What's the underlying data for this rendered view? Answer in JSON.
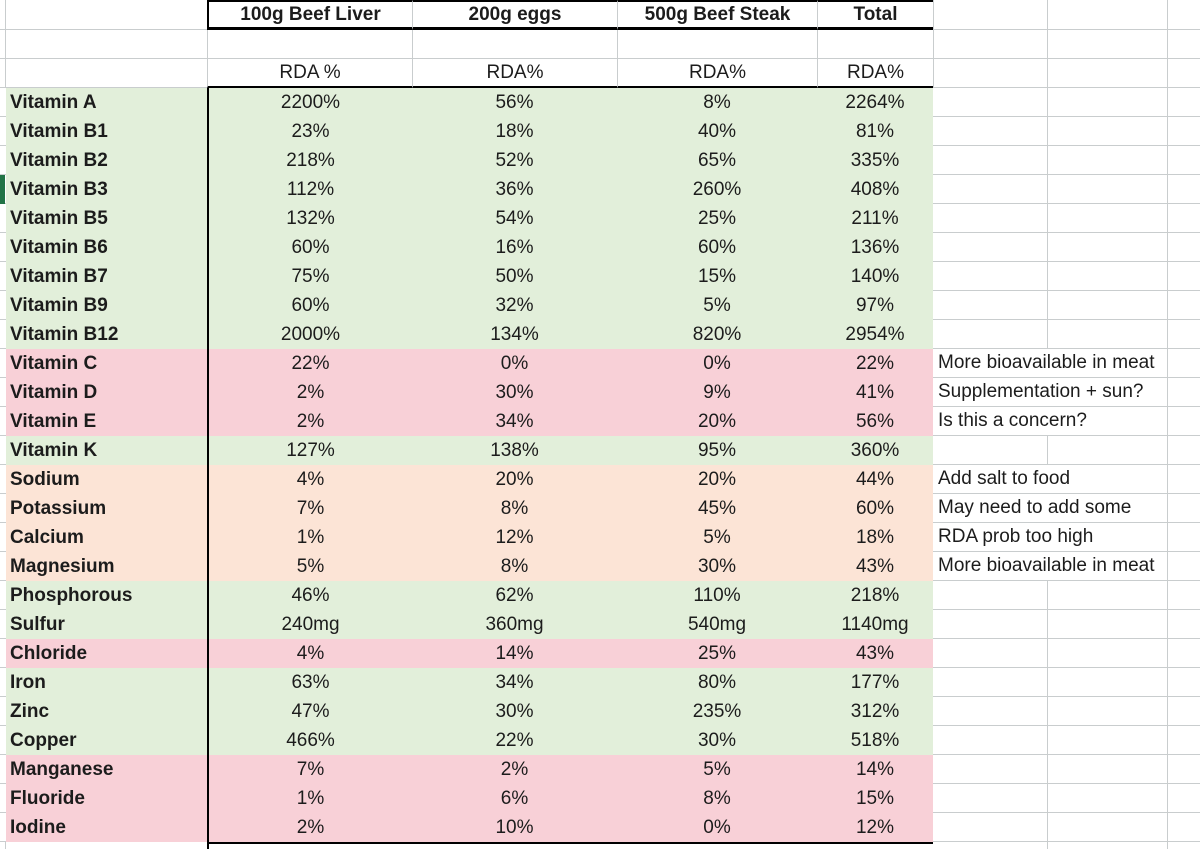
{
  "table": {
    "headers": {
      "col1": "100g Beef Liver",
      "col2": "200g eggs",
      "col3": "500g Beef Steak",
      "col4": "Total"
    },
    "subheaders": [
      "RDA %",
      "RDA%",
      "RDA%",
      "RDA%"
    ],
    "rows": [
      {
        "label": "Vitamin A",
        "fill": "green",
        "values": [
          "2200%",
          "56%",
          "8%",
          "2264%"
        ],
        "note": ""
      },
      {
        "label": "Vitamin B1",
        "fill": "green",
        "values": [
          "23%",
          "18%",
          "40%",
          "81%"
        ],
        "note": ""
      },
      {
        "label": "Vitamin B2",
        "fill": "green",
        "values": [
          "218%",
          "52%",
          "65%",
          "335%"
        ],
        "note": ""
      },
      {
        "label": "Vitamin B3",
        "fill": "green",
        "values": [
          "112%",
          "36%",
          "260%",
          "408%"
        ],
        "note": ""
      },
      {
        "label": "Vitamin B5",
        "fill": "green",
        "values": [
          "132%",
          "54%",
          "25%",
          "211%"
        ],
        "note": ""
      },
      {
        "label": "Vitamin B6",
        "fill": "green",
        "values": [
          "60%",
          "16%",
          "60%",
          "136%"
        ],
        "note": ""
      },
      {
        "label": "Vitamin B7",
        "fill": "green",
        "values": [
          "75%",
          "50%",
          "15%",
          "140%"
        ],
        "note": ""
      },
      {
        "label": "Vitamin B9",
        "fill": "green",
        "values": [
          "60%",
          "32%",
          "5%",
          "97%"
        ],
        "note": ""
      },
      {
        "label": "Vitamin B12",
        "fill": "green",
        "values": [
          "2000%",
          "134%",
          "820%",
          "2954%"
        ],
        "note": ""
      },
      {
        "label": "Vitamin C",
        "fill": "pink",
        "values": [
          "22%",
          "0%",
          "0%",
          "22%"
        ],
        "note": "More bioavailable in meat"
      },
      {
        "label": "Vitamin D",
        "fill": "pink",
        "values": [
          "2%",
          "30%",
          "9%",
          "41%"
        ],
        "note": "Supplementation + sun?"
      },
      {
        "label": "Vitamin E",
        "fill": "pink",
        "values": [
          "2%",
          "34%",
          "20%",
          "56%"
        ],
        "note": "Is this a concern?"
      },
      {
        "label": "Vitamin K",
        "fill": "green",
        "values": [
          "127%",
          "138%",
          "95%",
          "360%"
        ],
        "note": ""
      },
      {
        "label": "Sodium",
        "fill": "peach",
        "values": [
          "4%",
          "20%",
          "20%",
          "44%"
        ],
        "note": "Add salt to food"
      },
      {
        "label": "Potassium",
        "fill": "peach",
        "values": [
          "7%",
          "8%",
          "45%",
          "60%"
        ],
        "note": "May need to add some"
      },
      {
        "label": "Calcium",
        "fill": "peach",
        "values": [
          "1%",
          "12%",
          "5%",
          "18%"
        ],
        "note": "RDA prob too high"
      },
      {
        "label": "Magnesium",
        "fill": "peach",
        "values": [
          "5%",
          "8%",
          "30%",
          "43%"
        ],
        "note": "More bioavailable in meat"
      },
      {
        "label": "Phosphorous",
        "fill": "green",
        "values": [
          "46%",
          "62%",
          "110%",
          "218%"
        ],
        "note": ""
      },
      {
        "label": "Sulfur",
        "fill": "green",
        "values": [
          "240mg",
          "360mg",
          "540mg",
          "1140mg"
        ],
        "note": ""
      },
      {
        "label": "Chloride",
        "fill": "pink",
        "values": [
          "4%",
          "14%",
          "25%",
          "43%"
        ],
        "note": ""
      },
      {
        "label": "Iron",
        "fill": "green",
        "values": [
          "63%",
          "34%",
          "80%",
          "177%"
        ],
        "note": ""
      },
      {
        "label": "Zinc",
        "fill": "green",
        "values": [
          "47%",
          "30%",
          "235%",
          "312%"
        ],
        "note": ""
      },
      {
        "label": "Copper",
        "fill": "green",
        "values": [
          "466%",
          "22%",
          "30%",
          "518%"
        ],
        "note": ""
      },
      {
        "label": "Manganese",
        "fill": "pink",
        "values": [
          "7%",
          "2%",
          "5%",
          "14%"
        ],
        "note": ""
      },
      {
        "label": "Fluoride",
        "fill": "pink",
        "values": [
          "1%",
          "6%",
          "8%",
          "15%"
        ],
        "note": ""
      },
      {
        "label": "Iodine",
        "fill": "pink",
        "values": [
          "2%",
          "10%",
          "0%",
          "12%"
        ],
        "note": ""
      }
    ]
  },
  "colors": {
    "green": "#e2efda",
    "pink": "#f8d0d7",
    "peach": "#fce4d6",
    "selection_green": "#217346",
    "gridline": "#c9cdce",
    "border_black": "#000000"
  }
}
